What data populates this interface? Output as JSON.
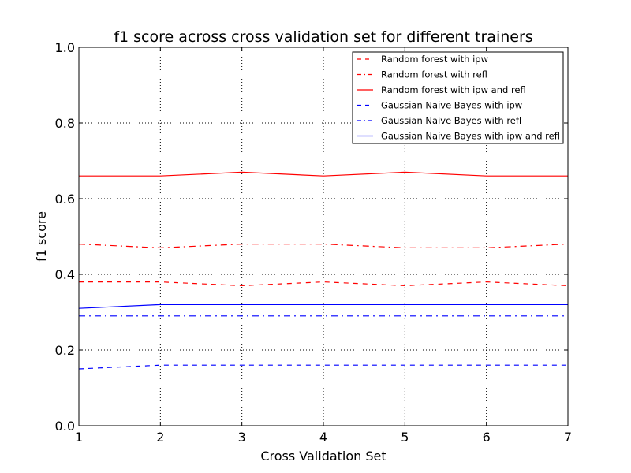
{
  "chart_data": {
    "type": "line",
    "title": "f1 score across cross validation set for different trainers",
    "xlabel": "Cross Validation Set",
    "ylabel": "f1 score",
    "xlim": [
      1,
      7
    ],
    "ylim": [
      0.0,
      1.0
    ],
    "x": [
      1,
      2,
      3,
      4,
      5,
      6,
      7
    ],
    "xticks": [
      "1",
      "2",
      "3",
      "4",
      "5",
      "6",
      "7"
    ],
    "yticks": [
      "0.0",
      "0.2",
      "0.4",
      "0.6",
      "0.8",
      "1.0"
    ],
    "grid": true,
    "legend_position": "top-right",
    "series": [
      {
        "name": "Random forest with ipw",
        "color": "#ff0000",
        "style": "dashed",
        "values": [
          0.38,
          0.38,
          0.37,
          0.38,
          0.37,
          0.38,
          0.37
        ]
      },
      {
        "name": "Random forest with refl",
        "color": "#ff0000",
        "style": "dashdot",
        "values": [
          0.48,
          0.47,
          0.48,
          0.48,
          0.47,
          0.47,
          0.48
        ]
      },
      {
        "name": "Random forest with ipw and refl",
        "color": "#ff0000",
        "style": "solid",
        "values": [
          0.66,
          0.66,
          0.67,
          0.66,
          0.67,
          0.66,
          0.66
        ]
      },
      {
        "name": "Gaussian Naive Bayes with ipw",
        "color": "#0000ff",
        "style": "dashed",
        "values": [
          0.15,
          0.16,
          0.16,
          0.16,
          0.16,
          0.16,
          0.16
        ]
      },
      {
        "name": "Gaussian Naive Bayes with refl",
        "color": "#0000ff",
        "style": "dashdot",
        "values": [
          0.29,
          0.29,
          0.29,
          0.29,
          0.29,
          0.29,
          0.29
        ]
      },
      {
        "name": "Gaussian Naive Bayes with ipw and refl",
        "color": "#0000ff",
        "style": "solid",
        "values": [
          0.31,
          0.32,
          0.32,
          0.32,
          0.32,
          0.32,
          0.32
        ]
      }
    ]
  }
}
